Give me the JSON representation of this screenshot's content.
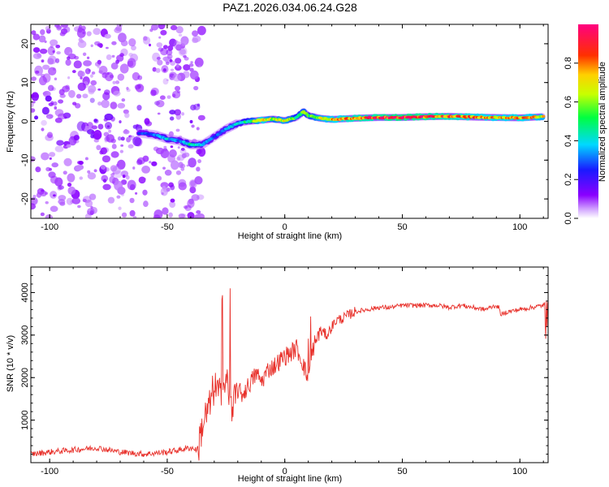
{
  "title": "PAZ1.2026.034.06.24.G28",
  "chart_data": [
    {
      "type": "heatmap",
      "xlabel": "Height of straight line (km)",
      "ylabel": "Frequency (Hz)",
      "xlim": [
        -108,
        112
      ],
      "ylim": [
        -25,
        25
      ],
      "xticks": [
        -100,
        -50,
        0,
        50,
        100
      ],
      "xtick_labels": [
        "-100",
        "-50",
        "0",
        "50",
        "100"
      ],
      "yticks": [
        -20,
        -10,
        0,
        10,
        20
      ],
      "ytick_labels": [
        "-20",
        "-10",
        "0",
        "10",
        "20"
      ],
      "colorbar": {
        "label": "Normalized spectral amplitude",
        "range": [
          0,
          1
        ],
        "ticks": [
          0.0,
          0.2,
          0.4,
          0.6,
          0.8
        ],
        "tick_labels": [
          "0.0",
          "0.2",
          "0.4",
          "0.6",
          "0.8"
        ],
        "colormap": "rainbow (purple-blue-cyan-green-yellow-red-magenta)"
      },
      "ridge": {
        "x": [
          -62,
          -55,
          -50,
          -45,
          -40,
          -35,
          -30,
          -25,
          -20,
          -15,
          -10,
          -5,
          0,
          5,
          8,
          10,
          15,
          20,
          30,
          40,
          50,
          60,
          70,
          80,
          90,
          100,
          110
        ],
        "freq": [
          -3,
          -3.5,
          -4.5,
          -5,
          -6,
          -6,
          -4,
          -2,
          -0.5,
          0,
          0.3,
          0.6,
          0.2,
          1,
          2.5,
          1.5,
          0.8,
          0.5,
          0.8,
          1,
          1,
          1.2,
          1.3,
          1.1,
          1,
          0.9,
          1.2
        ],
        "amplitude": [
          0.25,
          0.3,
          0.4,
          0.3,
          0.45,
          0.35,
          0.3,
          0.35,
          0.4,
          0.5,
          0.8,
          0.6,
          0.7,
          0.5,
          0.6,
          0.55,
          0.7,
          0.75,
          0.85,
          0.9,
          0.95,
          0.9,
          0.85,
          0.8,
          0.75,
          0.8,
          0.7
        ]
      },
      "noise_region_x": [
        -108,
        -35
      ]
    },
    {
      "type": "line",
      "xlabel": "Height of straight line (km)",
      "ylabel": "SNR (10 * v/v)",
      "xlim": [
        -108,
        112
      ],
      "ylim": [
        0,
        4600
      ],
      "xticks": [
        -100,
        -50,
        0,
        50,
        100
      ],
      "xtick_labels": [
        "-100",
        "-50",
        "0",
        "50",
        "100"
      ],
      "yticks": [
        1000,
        2000,
        3000,
        4000
      ],
      "ytick_labels": [
        "1000",
        "2000",
        "3000",
        "4000"
      ],
      "series": [
        {
          "name": "SNR",
          "color": "#e8302a",
          "x": [
            -108,
            -100,
            -90,
            -80,
            -70,
            -60,
            -50,
            -45,
            -40,
            -37,
            -35,
            -32,
            -30,
            -27,
            -25,
            -22,
            -20,
            -18,
            -15,
            -12,
            -10,
            -7,
            -5,
            -3,
            0,
            3,
            5,
            8,
            10,
            12,
            15,
            18,
            20,
            22,
            25,
            28,
            30,
            35,
            40,
            45,
            50,
            55,
            60,
            65,
            70,
            75,
            80,
            85,
            90,
            92,
            95,
            100,
            105,
            110,
            112
          ],
          "y": [
            200,
            250,
            300,
            350,
            250,
            200,
            250,
            300,
            350,
            300,
            900,
            1300,
            1800,
            1500,
            2000,
            1300,
            1700,
            1600,
            1850,
            2100,
            1900,
            2200,
            2250,
            2350,
            2500,
            2600,
            2700,
            2300,
            1900,
            2700,
            3100,
            3000,
            3200,
            3350,
            3400,
            3500,
            3550,
            3600,
            3650,
            3650,
            3700,
            3700,
            3700,
            3700,
            3650,
            3700,
            3650,
            3600,
            3700,
            3500,
            3550,
            3600,
            3650,
            3700,
            3800
          ]
        }
      ]
    }
  ]
}
